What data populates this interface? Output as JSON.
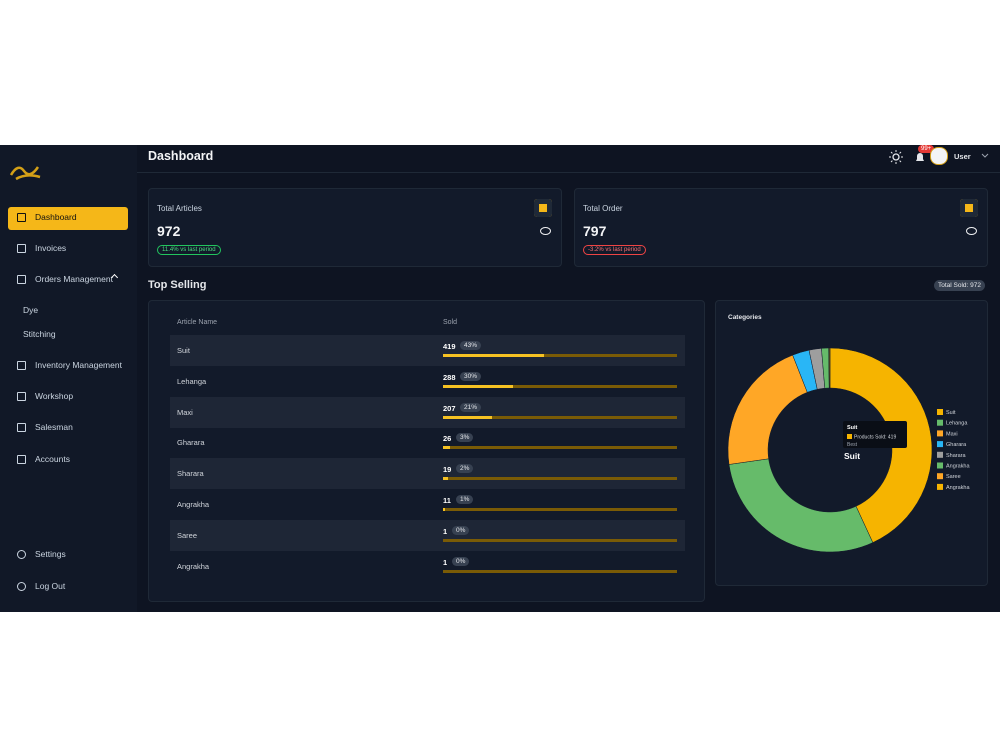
{
  "sidebar": {
    "nav": [
      "Dashboard",
      "Invoices",
      "Orders Management",
      "Dye",
      "Stitching",
      "Inventory Management",
      "Workshop",
      "Salesman",
      "Accounts"
    ],
    "footer": [
      "Settings",
      "Log Out"
    ]
  },
  "header": {
    "title": "Dashboard",
    "notification_badge": "99+",
    "user": "User"
  },
  "cards": [
    {
      "title": "Total Articles",
      "value": 972,
      "change": "11.4% vs last period"
    },
    {
      "title": "Total Order",
      "value": 797,
      "change": "-3.2% vs last period"
    }
  ],
  "top_selling": {
    "title": "Top Selling",
    "total_badge": "Total Sold: 972",
    "table": {
      "columns": [
        "Article Name",
        "Sold"
      ],
      "rows": [
        {
          "name": "Suit",
          "sold": 419,
          "percent": 43,
          "percent_label": "43%"
        },
        {
          "name": "Lehanga",
          "sold": 288,
          "percent": 30,
          "percent_label": "30%"
        },
        {
          "name": "Maxi",
          "sold": 207,
          "percent": 21,
          "percent_label": "21%"
        },
        {
          "name": "Gharara",
          "sold": 26,
          "percent": 3,
          "percent_label": "3%"
        },
        {
          "name": "Sharara",
          "sold": 19,
          "percent": 2,
          "percent_label": "2%"
        },
        {
          "name": "Angrakha",
          "sold": 11,
          "percent": 1,
          "percent_label": "1%"
        },
        {
          "name": "Saree",
          "sold": 1,
          "percent": 0,
          "percent_label": "0%"
        },
        {
          "name": "Angrakha",
          "sold": 1,
          "percent": 0,
          "percent_label": "0%"
        }
      ]
    }
  },
  "chart_data": {
    "type": "pie",
    "title": "Categories",
    "categories": [
      "Suit",
      "Lehanga",
      "Maxi",
      "Gharara",
      "Sharara",
      "Angrakha",
      "Saree",
      "Angrakha"
    ],
    "values": [
      419,
      288,
      207,
      26,
      19,
      11,
      1,
      1
    ],
    "colors": [
      "#f6b400",
      "#66bb6a",
      "#ffa726",
      "#29b6f6",
      "#9e9e9e",
      "#66bb6a",
      "#ffa726",
      "#f6b400"
    ],
    "donut": true,
    "legend": "right",
    "center_label": "Suit",
    "tooltip": {
      "title": "Suit",
      "text": "Products Sold: 419",
      "note": "Best"
    }
  }
}
